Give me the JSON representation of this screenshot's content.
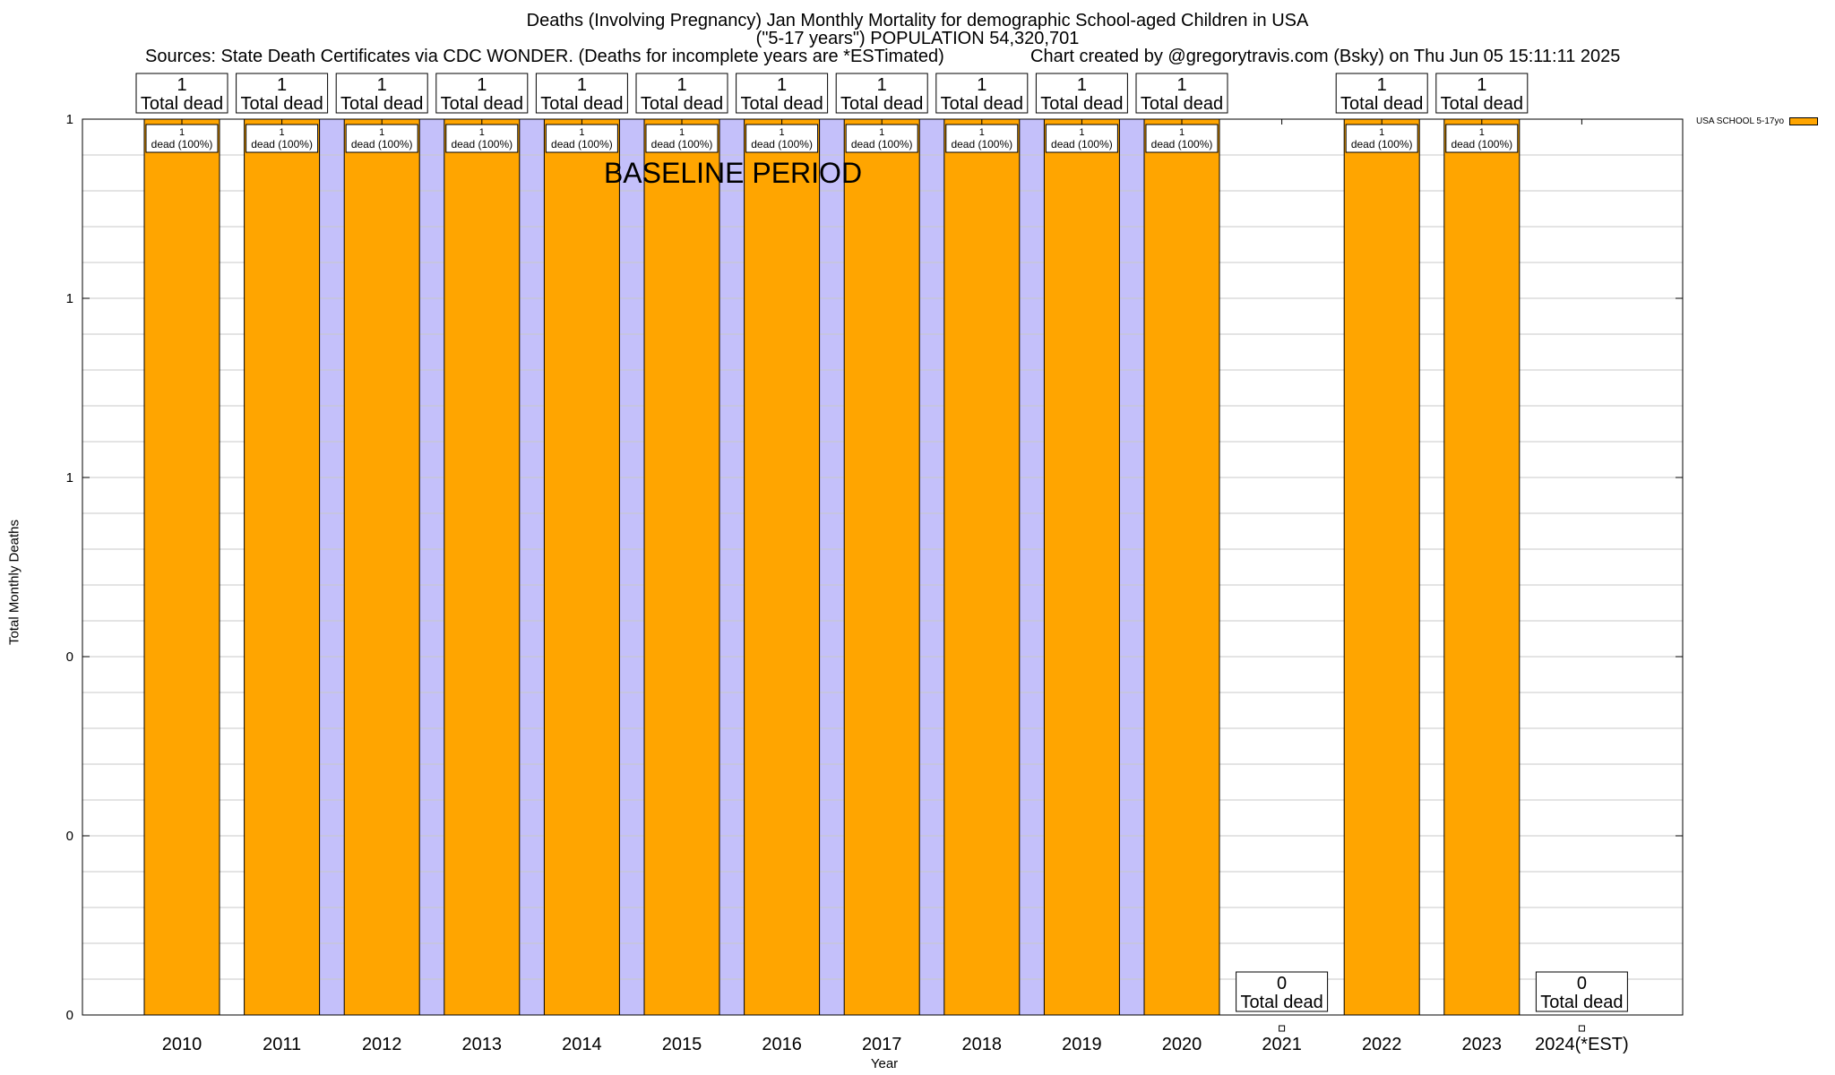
{
  "header": {
    "title_line1": "Deaths (Involving Pregnancy) Jan Monthly Mortality for demographic School-aged Children in USA",
    "title_line2": "(\"5-17 years\") POPULATION 54,320,701",
    "sources": "Sources: State Death Certificates via CDC WONDER. (Deaths for incomplete years are *ESTimated)",
    "credit": "Chart created by @gregorytravis.com (Bsky) on Thu Jun 05 15:11:11 2025"
  },
  "colors": {
    "bar": "#FFA500",
    "baseline_shade": "#C4C0FA",
    "grid": "#C8C8C8"
  },
  "chart_data": {
    "type": "bar",
    "xlabel": "Year",
    "ylabel": "Total Monthly Deaths",
    "ylim": [
      0,
      1.0
    ],
    "y_ticks": [
      {
        "value": 0.0,
        "label": "0"
      },
      {
        "value": 0.2,
        "label": "0"
      },
      {
        "value": 0.4,
        "label": "0"
      },
      {
        "value": 0.6,
        "label": "1"
      },
      {
        "value": 0.8,
        "label": "1"
      },
      {
        "value": 1.0,
        "label": "1"
      }
    ],
    "grid": true,
    "legend_position": "top-right",
    "categories": [
      "2010",
      "2011",
      "2012",
      "2013",
      "2014",
      "2015",
      "2016",
      "2017",
      "2018",
      "2019",
      "2020",
      "2021",
      "2022",
      "2023",
      "2024(*EST)"
    ],
    "series": [
      {
        "name": "USA SCHOOL 5-17yo",
        "values": [
          1,
          1,
          1,
          1,
          1,
          1,
          1,
          1,
          1,
          1,
          1,
          0,
          1,
          1,
          0
        ]
      }
    ],
    "total_labels": [
      "1",
      "1",
      "1",
      "1",
      "1",
      "1",
      "1",
      "1",
      "1",
      "1",
      "1",
      "0",
      "1",
      "1",
      "0"
    ],
    "total_label_suffix": "Total dead",
    "bar_labels": [
      "1",
      "1",
      "1",
      "1",
      "1",
      "1",
      "1",
      "1",
      "1",
      "1",
      "1",
      "",
      "1",
      "1",
      ""
    ],
    "bar_label_suffix": "dead (100%)",
    "baseline_period": {
      "label": "BASELINE PERIOD",
      "start_category": "2011",
      "end_category": "2019"
    }
  }
}
